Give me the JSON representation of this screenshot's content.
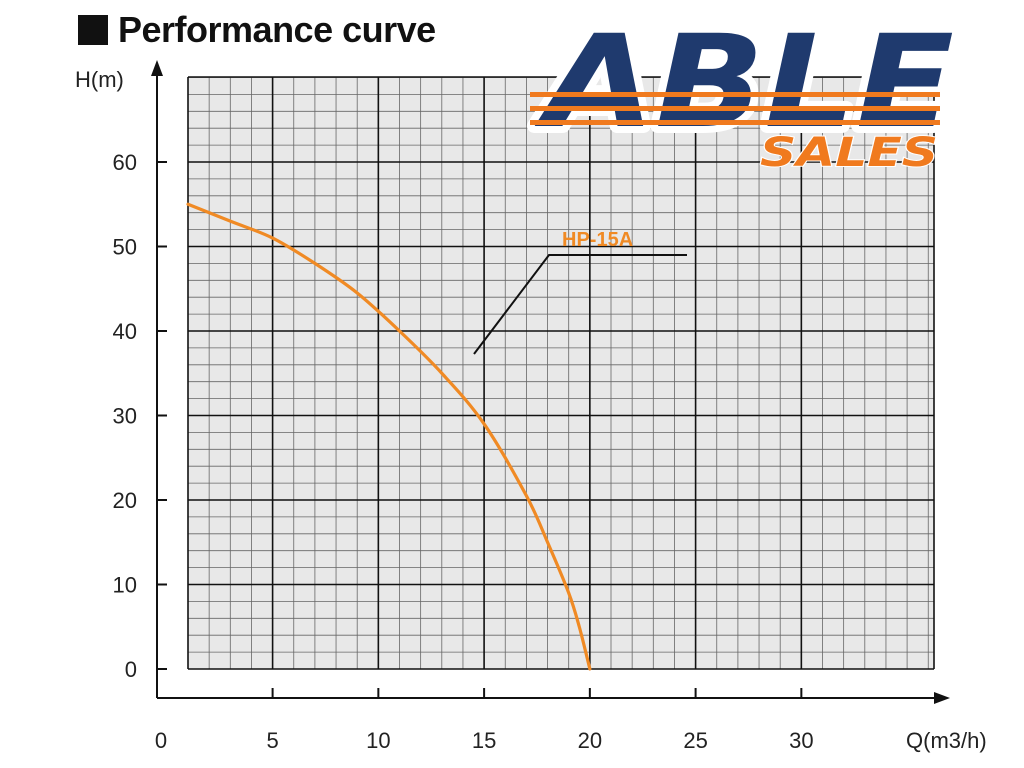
{
  "header": {
    "title": "Performance curve"
  },
  "logo": {
    "main": "ABLE",
    "sub": "SALES",
    "colors": {
      "navy": "#1f3a6e",
      "orange": "#f07a1e"
    }
  },
  "chart_data": {
    "type": "line",
    "title": "Performance curve",
    "xlabel": "Q(m3/h)",
    "ylabel": "H(m)",
    "xlim": [
      0,
      35
    ],
    "ylim": [
      0,
      70
    ],
    "x_ticks": [
      0,
      5,
      10,
      15,
      20,
      25,
      30
    ],
    "y_ticks": [
      0,
      10,
      20,
      30,
      40,
      50,
      60
    ],
    "grid": true,
    "series": [
      {
        "name": "HP-15A",
        "color": "#f08a24",
        "x": [
          1,
          3,
          5,
          7,
          9,
          11,
          13,
          15,
          17,
          18,
          19,
          19.5,
          20
        ],
        "y": [
          55,
          53,
          51,
          48,
          44.5,
          40,
          35,
          29,
          20.5,
          15,
          9,
          5,
          0
        ]
      }
    ],
    "colors": {
      "plot_bg": "#e8e8e8",
      "grid_major": "#111111",
      "grid_minor": "#666666",
      "axis": "#111111"
    }
  }
}
